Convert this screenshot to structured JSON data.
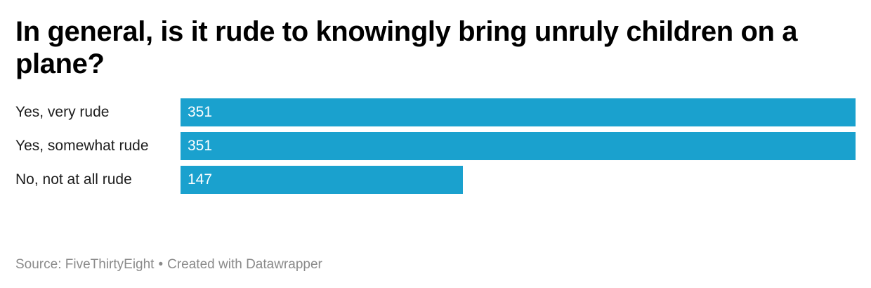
{
  "title": "In general, is it rude to knowingly bring unruly children on a plane?",
  "footer": {
    "source": "Source: FiveThirtyEight",
    "separator": "•",
    "credit": "Created with Datawrapper"
  },
  "colors": {
    "bar": "#1aa1ce",
    "value_label": "#ffffff",
    "footer_text": "#8a8a8a"
  },
  "chart_data": {
    "type": "bar",
    "orientation": "horizontal",
    "categories": [
      "Yes, very rude",
      "Yes, somewhat rude",
      "No, not at all rude"
    ],
    "values": [
      351,
      351,
      147
    ],
    "title": "In general, is it rude to knowingly bring unruly children on a plane?",
    "xlabel": "",
    "ylabel": "",
    "xlim": [
      0,
      351
    ],
    "grid": false,
    "legend": "none",
    "data_labels": "inside-left"
  }
}
